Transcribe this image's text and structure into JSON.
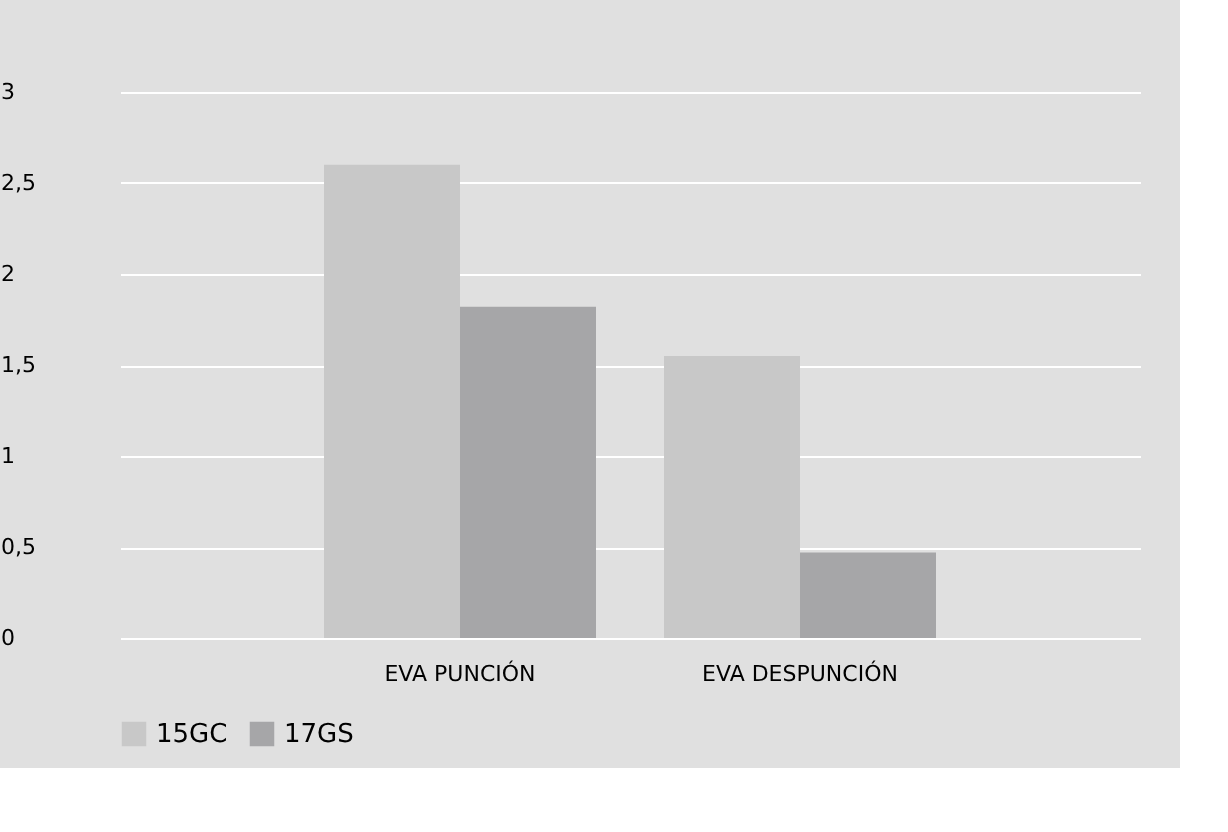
{
  "chart_data": {
    "type": "bar",
    "categories": [
      "EVA PUNCIÓN",
      "EVA DESPUNCIÓN"
    ],
    "series": [
      {
        "name": "15GC",
        "color": "#c8c8c8",
        "values": [
          2.6,
          1.55
        ]
      },
      {
        "name": "17GS",
        "color": "#a6a6a8",
        "values": [
          1.82,
          0.47
        ]
      }
    ],
    "ylim": [
      0,
      3
    ],
    "yticks": [
      0,
      {
        "value": 0.5,
        "label": "0,5"
      },
      1,
      {
        "value": 1.5,
        "label": "1,5"
      },
      2,
      {
        "value": 2.5,
        "label": "2,5"
      },
      3
    ],
    "grid": "y",
    "legend": "bottom"
  }
}
